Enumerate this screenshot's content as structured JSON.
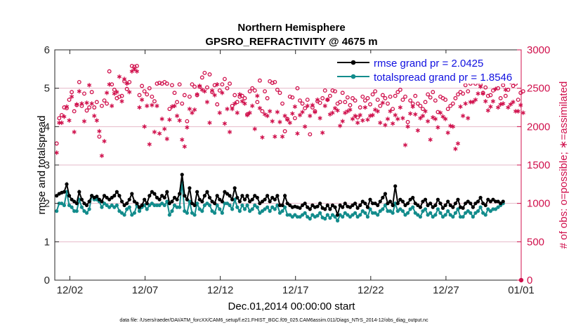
{
  "chart_data": {
    "type": "line",
    "title": "Northern Hemisphere",
    "subtitle": "GPSRO_REFRACTIVITY @ 4675 m",
    "xlabel": "Dec.01,2014 00:00:00 start",
    "ylabel": "rmse and totalspread",
    "y2label": "# of obs: o=possible; ∗=assimilated",
    "xlim": [
      0,
      31
    ],
    "ylim": [
      0,
      6
    ],
    "y2lim": [
      0,
      3000
    ],
    "x_ticks": [
      1,
      6,
      11,
      16,
      21,
      26,
      31
    ],
    "x_tick_labels": [
      "12/02",
      "12/07",
      "12/12",
      "12/17",
      "12/22",
      "12/27",
      "01/01"
    ],
    "y_ticks": [
      "0",
      "1",
      "2",
      "3",
      "4",
      "5",
      "6"
    ],
    "y2_ticks": [
      "0",
      "500",
      "1000",
      "1500",
      "2000",
      "2500",
      "3000"
    ],
    "legend_position": "top-right",
    "colors": {
      "rmse": "#000000",
      "spread": "#128c8c",
      "obs": "#d0104c",
      "legend_text": "#1010e0",
      "grid": "#e6b8c8"
    },
    "series": [
      {
        "name": "rmse grand pr = 2.0425",
        "axis": "left",
        "marker": "dot",
        "values": [
          2.2,
          2.25,
          2.28,
          2.3,
          2.5,
          2.2,
          2.1,
          2.05,
          2.0,
          2.3,
          2.1,
          2.0,
          1.95,
          2.05,
          2.2,
          2.15,
          2.18,
          2.1,
          2.05,
          2.2,
          2.15,
          2.1,
          2.15,
          2.2,
          2.3,
          2.2,
          2.05,
          1.95,
          2.0,
          2.1,
          2.25,
          2.05,
          2.0,
          1.9,
          1.95,
          2.1,
          2.0,
          2.2,
          2.3,
          2.25,
          2.15,
          2.1,
          2.2,
          2.15,
          2.3,
          2.0,
          2.05,
          2.15,
          2.1,
          2.25,
          2.75,
          2.2,
          2.1,
          2.4,
          2.0,
          1.95,
          2.3,
          2.1,
          2.05,
          2.2,
          2.3,
          2.15,
          2.05,
          2.0,
          2.2,
          2.1,
          2.05,
          2.3,
          2.25,
          2.2,
          2.1,
          2.4,
          2.15,
          2.05,
          2.2,
          2.1,
          2.2,
          2.05,
          2.1,
          2.2,
          2.15,
          2.0,
          2.05,
          2.1,
          2.2,
          2.05,
          2.15,
          2.1,
          2.2,
          1.95,
          1.95,
          2.2,
          2.0,
          1.95,
          1.9,
          1.92,
          1.9,
          1.88,
          1.95,
          2.0,
          1.9,
          1.85,
          1.95,
          1.9,
          1.92,
          2.0,
          1.88,
          1.85,
          1.95,
          1.85,
          1.95,
          1.9,
          1.7,
          1.95,
          1.9,
          2.0,
          1.92,
          1.9,
          1.95,
          2.0,
          1.88,
          1.95,
          2.05,
          2.0,
          1.9,
          2.1,
          2.0,
          2.0,
          1.95,
          2.05,
          2.15,
          2.25,
          2.0,
          2.05,
          1.95,
          2.45,
          2.0,
          2.1,
          2.05,
          1.95,
          2.0,
          2.1,
          2.15,
          2.0,
          1.95,
          1.9,
          2.05,
          2.1,
          1.95,
          2.0,
          1.9,
          1.95,
          2.1,
          2.0,
          1.88,
          1.95,
          2.05,
          1.95,
          1.9,
          2.0,
          2.1,
          1.9,
          1.88,
          2.0,
          2.05,
          2.0,
          1.9,
          2.0,
          2.05,
          2.15,
          2.0,
          1.95,
          2.1,
          2.05,
          2.1,
          2.05,
          2.05,
          2.0,
          2.05
        ]
      },
      {
        "name": "totalspread grand pr = 1.8546",
        "axis": "left",
        "marker": "dot",
        "values": [
          1.8,
          2.0,
          2.0,
          1.95,
          2.3,
          1.95,
          1.9,
          1.8,
          1.8,
          2.1,
          1.9,
          1.8,
          1.75,
          1.85,
          2.2,
          2.1,
          2.1,
          2.05,
          1.9,
          2.0,
          1.95,
          1.9,
          1.95,
          1.9,
          1.95,
          1.8,
          1.75,
          1.7,
          1.85,
          1.9,
          1.7,
          1.75,
          1.95,
          1.8,
          1.9,
          1.95,
          1.85,
          1.95,
          2.0,
          1.95,
          1.95,
          1.95,
          2.0,
          1.95,
          2.05,
          1.7,
          1.8,
          1.95,
          1.9,
          1.9,
          2.55,
          1.8,
          1.75,
          2.05,
          1.75,
          1.7,
          2.0,
          1.85,
          1.8,
          1.95,
          2.0,
          1.95,
          1.8,
          1.75,
          1.95,
          1.85,
          1.75,
          2.0,
          2.0,
          1.95,
          1.85,
          2.1,
          1.9,
          1.8,
          1.95,
          1.85,
          1.95,
          1.8,
          1.85,
          1.95,
          1.9,
          1.75,
          1.8,
          1.85,
          1.9,
          1.8,
          1.9,
          1.85,
          1.95,
          1.75,
          1.8,
          1.9,
          1.7,
          1.7,
          1.65,
          1.7,
          1.65,
          1.65,
          1.7,
          1.75,
          1.65,
          1.6,
          1.7,
          1.65,
          1.68,
          1.75,
          1.63,
          1.6,
          1.7,
          1.62,
          1.7,
          1.65,
          1.55,
          1.7,
          1.65,
          1.75,
          1.7,
          1.65,
          1.7,
          1.75,
          1.65,
          1.7,
          1.8,
          1.75,
          1.65,
          1.85,
          1.75,
          1.75,
          1.7,
          1.8,
          1.85,
          1.95,
          1.8,
          1.8,
          1.75,
          2.0,
          1.8,
          1.85,
          1.8,
          1.7,
          1.75,
          1.85,
          1.9,
          1.75,
          1.7,
          1.65,
          1.8,
          1.85,
          1.7,
          1.75,
          1.65,
          1.7,
          1.85,
          1.75,
          1.65,
          1.7,
          1.8,
          1.7,
          1.65,
          1.75,
          1.85,
          1.65,
          1.65,
          1.75,
          1.8,
          1.75,
          1.65,
          1.75,
          1.8,
          1.9,
          1.75,
          1.7,
          1.85,
          1.8,
          1.85,
          1.85,
          1.9,
          1.95,
          2.0
        ]
      },
      {
        "name": "obs possible",
        "axis": "right",
        "marker": "circle",
        "values": [
          1780,
          2110,
          2150,
          2250,
          2240,
          2350,
          2450,
          2200,
          2280,
          2580,
          2270,
          2430,
          2210,
          2250,
          2450,
          2250,
          2320,
          1870,
          2270,
          2340,
          2300,
          2720,
          2550,
          2480,
          2370,
          2390,
          2400,
          2590,
          2490,
          2580,
          2790,
          2780,
          2790,
          2410,
          2530,
          2460,
          2420,
          2500,
          2390,
          2330,
          2560,
          2570,
          2560,
          2580,
          2560,
          2230,
          2540,
          2440,
          2320,
          2550,
          2300,
          2410,
          2070,
          2390,
          2550,
          2520,
          2410,
          2520,
          2640,
          2700,
          2510,
          2680,
          2450,
          2540,
          2290,
          2470,
          2550,
          2620,
          2500,
          2560,
          2270,
          2410,
          2320,
          2390,
          2400,
          2370,
          2160,
          2460,
          2500,
          2470,
          2320,
          2600,
          2200,
          2460,
          2370,
          2590,
          2570,
          2580,
          2480,
          2440,
          2300,
          1940,
          2100,
          2390,
          2380,
          2110,
          2500,
          2340,
          2300,
          2240,
          2350,
          1900,
          2250,
          2200,
          2330,
          2310,
          2370,
          2470,
          2350,
          2400,
          2470,
          2460,
          2300,
          2320,
          2440,
          2320,
          2380,
          2280,
          2370,
          2340,
          2120,
          2250,
          2390,
          2340,
          2370,
          2290,
          2420,
          2460,
          2350,
          2270,
          2410,
          2370,
          2300,
          2390,
          2230,
          2400,
          2450,
          2480,
          2350,
          2390,
          2060,
          2340,
          2300,
          2400,
          2300,
          2270,
          2230,
          2320,
          2420,
          2380,
          2450,
          2340,
          2190,
          2390,
          2370,
          2350,
          2230,
          2270,
          2300,
          2370,
          2420,
          2450,
          2430,
          2540,
          2460,
          2560,
          2600,
          2560,
          2620,
          2550,
          2440,
          2510,
          2400,
          2410,
          2470,
          2640,
          2500,
          2370,
          2540,
          2400,
          2480,
          2580,
          2530,
          2560,
          2350,
          2440,
          2460
        ]
      },
      {
        "name": "obs assimilated",
        "axis": "right",
        "marker": "asterisk",
        "values": [
          1660,
          2050,
          2050,
          2130,
          2260,
          2080,
          2390,
          1930,
          2290,
          2460,
          2300,
          2070,
          2310,
          2540,
          2300,
          2140,
          2080,
          1940,
          1620,
          1810,
          2440,
          2550,
          2270,
          2430,
          2450,
          2650,
          2330,
          2620,
          2560,
          2450,
          2720,
          2750,
          2720,
          2250,
          2350,
          2000,
          2270,
          1770,
          2280,
          1930,
          2270,
          1910,
          2100,
          1970,
          1840,
          2090,
          2260,
          2270,
          2140,
          2080,
          1830,
          1740,
          1990,
          2230,
          2180,
          2220,
          2420,
          2530,
          2480,
          2460,
          2320,
          2050,
          2470,
          2410,
          2550,
          2180,
          2440,
          2040,
          2230,
          1930,
          2230,
          2300,
          2180,
          2420,
          2330,
          2300,
          2150,
          2180,
          2270,
          1970,
          2400,
          2240,
          1860,
          2160,
          2140,
          2200,
          2070,
          1870,
          2190,
          2060,
          1870,
          2140,
          2090,
          2050,
          2170,
          2260,
          1910,
          2150,
          2190,
          2000,
          2270,
          2140,
          2280,
          2190,
          2350,
          2110,
          1920,
          2270,
          2350,
          2160,
          2180,
          2240,
          2210,
          2010,
          2070,
          2180,
          2200,
          2220,
          2100,
          2140,
          2050,
          2150,
          2080,
          2250,
          2090,
          2140,
          2150,
          2220,
          2200,
          2050,
          2310,
          2020,
          2100,
          2200,
          2040,
          2150,
          2100,
          2250,
          2110,
          1760,
          2000,
          2170,
          2260,
          2160,
          1950,
          2110,
          2140,
          2200,
          2070,
          1830,
          2120,
          2100,
          1990,
          2180,
          2130,
          2100,
          1920,
          2010,
          2000,
          1710,
          1780,
          2260,
          2140,
          2300,
          2110,
          2320,
          2320,
          2350,
          2430,
          2520,
          2430,
          2330,
          2210,
          2260,
          2330,
          2490,
          2250,
          2290,
          2300,
          2480,
          2250,
          2290,
          2320,
          2200,
          2200,
          2280,
          2180
        ]
      }
    ]
  },
  "footer": "data file: /Users/raeder/DAI/ATM_forcXX/CAM6_setup/f.e21.FHIST_BGC.f09_025.CAM6assim.011/Diags_NTrS_2014-12/obs_diag_output.nc"
}
